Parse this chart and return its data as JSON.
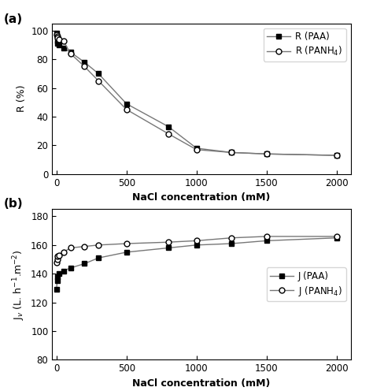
{
  "panel_a": {
    "title": "(a)",
    "xlabel": "NaCl concentration (mM)",
    "ylabel": "R (%)",
    "ylim": [
      0,
      105
    ],
    "xlim": [
      -30,
      2100
    ],
    "yticks": [
      0,
      20,
      40,
      60,
      80,
      100
    ],
    "xticks": [
      0,
      500,
      1000,
      1500,
      2000
    ],
    "paa_x": [
      1,
      5,
      10,
      20,
      50,
      100,
      200,
      300,
      500,
      800,
      1000,
      1250,
      1500,
      2000
    ],
    "paa_y": [
      98,
      93,
      91,
      90,
      88,
      85,
      78,
      70,
      49,
      33,
      18,
      15,
      14,
      13
    ],
    "panh4_x": [
      1,
      5,
      10,
      20,
      50,
      100,
      200,
      300,
      500,
      800,
      1000,
      1250,
      1500,
      2000
    ],
    "panh4_y": [
      97,
      96,
      95,
      94,
      93,
      84,
      75,
      65,
      45,
      28,
      17,
      15,
      14,
      13
    ],
    "paa_label": "R (PAA)",
    "panh4_label": "R (PANH$_4$)"
  },
  "panel_b": {
    "title": "(b)",
    "xlabel": "NaCl concentration (mM)",
    "ylabel": "J$_v$ (L. h$^{-1}$.m$^{-2}$)",
    "ylim": [
      80,
      185
    ],
    "xlim": [
      -30,
      2100
    ],
    "yticks": [
      80,
      100,
      120,
      140,
      160,
      180
    ],
    "xticks": [
      0,
      500,
      1000,
      1500,
      2000
    ],
    "paa_x": [
      1,
      5,
      10,
      20,
      50,
      100,
      200,
      300,
      500,
      800,
      1000,
      1250,
      1500,
      2000
    ],
    "paa_y": [
      129,
      135,
      138,
      140,
      142,
      144,
      147,
      151,
      155,
      158,
      160,
      161,
      163,
      165
    ],
    "panh4_x": [
      1,
      5,
      10,
      20,
      50,
      100,
      200,
      300,
      500,
      800,
      1000,
      1250,
      1500,
      2000
    ],
    "panh4_y": [
      148,
      150,
      152,
      153,
      155,
      158,
      159,
      160,
      161,
      162,
      163,
      165,
      166,
      166
    ],
    "paa_label": "J (PAA)",
    "panh4_label": "J (PANH$_4$)"
  },
  "line_color": "#777777",
  "marker_filled": "s",
  "marker_open": "o",
  "marker_size": 5,
  "line_width": 1.0,
  "background_color": "#ffffff",
  "label_fontsize": 9,
  "tick_fontsize": 8.5,
  "legend_fontsize": 8.5,
  "panel_label_fontsize": 11
}
